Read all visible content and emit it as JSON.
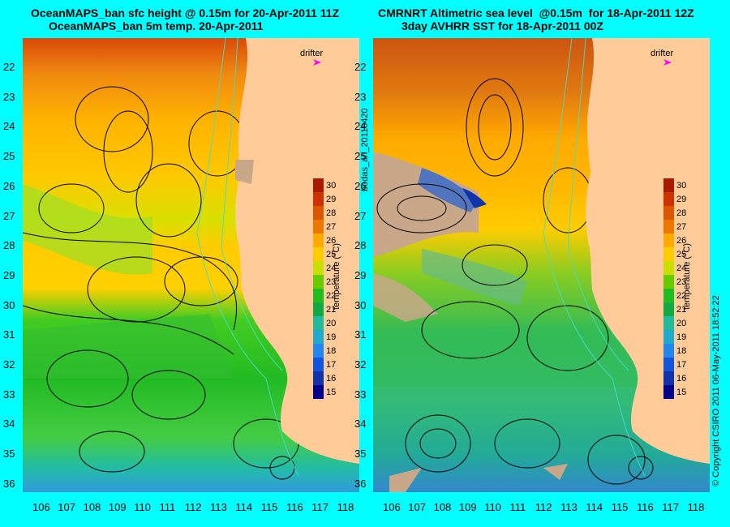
{
  "left_panel": {
    "title_line1": "OceanMAPS_ban sfc height @ 0.15m for 20-Apr-2011 11Z",
    "title_line2": "OceanMAPS_ban 5m temp. 20-Apr-2011",
    "drifter_label": "drifter",
    "colorbar_label": "temperature (°C)",
    "colorbar_ticks": [
      "30",
      "29",
      "28",
      "27",
      "26",
      "25",
      "24",
      "23",
      "22",
      "21",
      "20",
      "19",
      "18",
      "17",
      "16",
      "15"
    ]
  },
  "right_panel": {
    "title_line1": "CMRNRT Altimetric sea level  @0.15m  for 18-Apr-2011 12Z",
    "title_line2": "3day AVHRR SST for 18-Apr-2011 00Z",
    "drifter_label": "drifter",
    "colorbar_label": "temperature (°C)",
    "colorbar_ticks": [
      "30",
      "29",
      "28",
      "27",
      "26",
      "25",
      "24",
      "23",
      "22",
      "21",
      "20",
      "19",
      "18",
      "17",
      "16",
      "15"
    ]
  },
  "latitude_labels": [
    "22",
    "23",
    "24",
    "25",
    "26",
    "27",
    "28",
    "29",
    "30",
    "31",
    "32",
    "33",
    "34",
    "35",
    "36"
  ],
  "longitude_labels": [
    "106",
    "107",
    "108",
    "109",
    "110",
    "111",
    "112",
    "113",
    "114",
    "115",
    "116",
    "117",
    "118"
  ],
  "side_label_left": "bodas_an_20110420",
  "side_label_right": "© Copyright CSIRO 2011  06-May-2011 18:52:22",
  "colors": {
    "background": "#00ffff",
    "land": "#ffcc99",
    "drifter": "#ff00ff"
  }
}
